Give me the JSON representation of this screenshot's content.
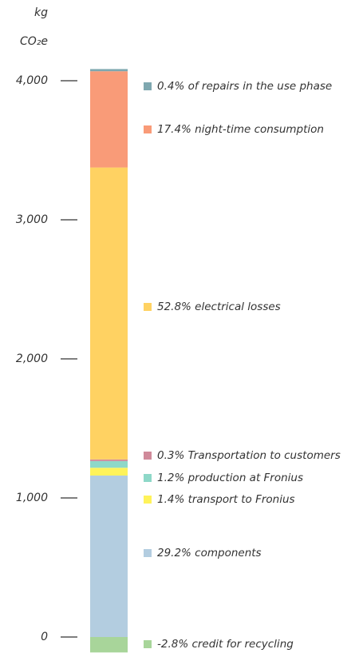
{
  "chart_data": {
    "type": "stacked_bar",
    "y_label_lines": [
      "kg",
      "CO₂e"
    ],
    "ylim": [
      0,
      4000
    ],
    "yticks": [
      0,
      {
        "value": 1000,
        "label": "1,000"
      },
      {
        "value": 2000,
        "label": "2,000"
      },
      {
        "value": 3000,
        "label": "3,000"
      },
      {
        "value": 4000,
        "label": "4,000"
      }
    ],
    "series": [
      {
        "name": "-2.8% credit for recycling",
        "color": "#a8d59a",
        "values": [
          -111
        ]
      },
      {
        "name": "29.2% components",
        "color": "#b3cde0",
        "values": [
          1161
        ]
      },
      {
        "name": "1.4% transport to Fronius",
        "color": "#fff35a",
        "values": [
          56
        ]
      },
      {
        "name": "1.2% production at Fronius",
        "color": "#8ed8c8",
        "values": [
          48
        ]
      },
      {
        "name": "0.3% Transportation to customers",
        "color": "#d08a9a",
        "values": [
          12
        ]
      },
      {
        "name": "52.8% electrical losses",
        "color": "#ffd262",
        "values": [
          2099
        ]
      },
      {
        "name": "17.4% night-time consumption",
        "color": "#f99b78",
        "values": [
          692
        ]
      },
      {
        "name": "0.4% of repairs in the use phase",
        "color": "#7fa8b0",
        "values": [
          16
        ]
      }
    ]
  }
}
